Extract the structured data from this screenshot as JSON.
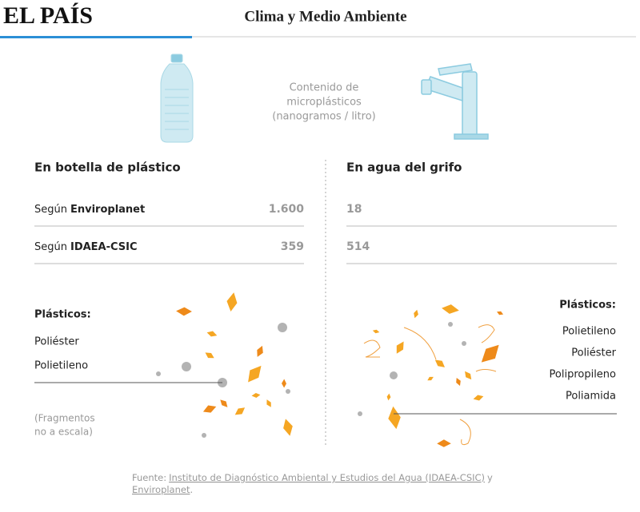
{
  "header": {
    "logo": "EL PAÍS",
    "section": "Clima y Medio Ambiente"
  },
  "intro": {
    "lines": [
      "Contenido de",
      "microplásticos",
      "(nanogramos / litro)"
    ]
  },
  "table": {
    "columns": [
      "En botella de plástico",
      "En agua del grifo"
    ],
    "rows": [
      {
        "prefix": "Según",
        "source": "Enviroplanet",
        "cells": [
          "1.600",
          "18"
        ]
      },
      {
        "prefix": "Según",
        "source": "IDAEA-CSIC",
        "cells": [
          "359",
          "514"
        ]
      }
    ]
  },
  "left_plastics": {
    "title": "Plásticos:",
    "items": [
      "Poliéster",
      "Polietileno"
    ],
    "note": [
      "(Fragmentos",
      "no a escala)"
    ]
  },
  "right_plastics": {
    "title": "Plásticos:",
    "items": [
      "Polietileno",
      "Poliéster",
      "Polipropileno",
      "Poliamida"
    ]
  },
  "footer": {
    "label": "Fuente:",
    "source_1": "Instituto de Diagnóstico Ambiental y Estudios del Agua (IDAEA-CSIC)",
    "joiner": "y",
    "source_2": "Enviroplanet",
    "end": "."
  }
}
